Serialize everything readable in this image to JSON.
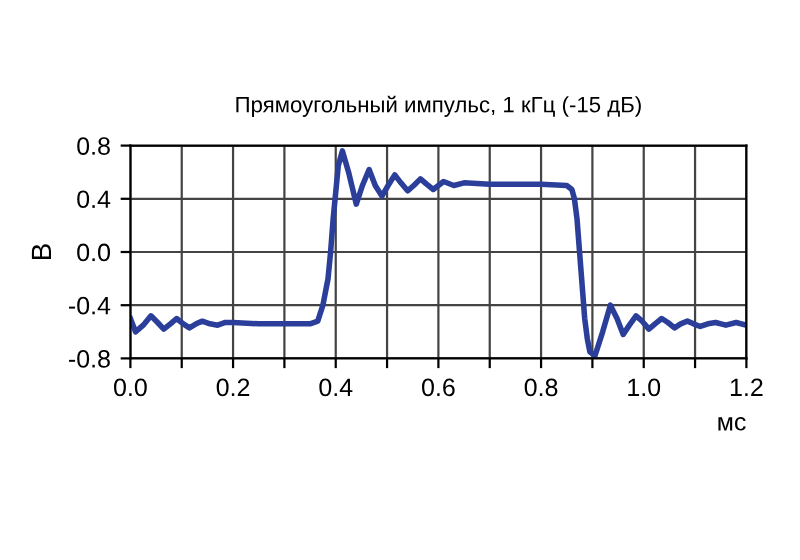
{
  "chart_data": {
    "type": "line",
    "title": "Прямоугольный импульс, 1 кГц (-15 дБ)",
    "xlabel": "мс",
    "ylabel": "В",
    "x": [
      0,
      0.01,
      0.025,
      0.04,
      0.053,
      0.065,
      0.078,
      0.09,
      0.103,
      0.115,
      0.128,
      0.14,
      0.155,
      0.17,
      0.185,
      0.2,
      0.25,
      0.3,
      0.35,
      0.365,
      0.375,
      0.385,
      0.39,
      0.395,
      0.4,
      0.405,
      0.413,
      0.425,
      0.44,
      0.452,
      0.465,
      0.477,
      0.49,
      0.502,
      0.515,
      0.527,
      0.54,
      0.552,
      0.565,
      0.577,
      0.59,
      0.6,
      0.61,
      0.63,
      0.65,
      0.7,
      0.75,
      0.8,
      0.85,
      0.86,
      0.865,
      0.87,
      0.875,
      0.88,
      0.885,
      0.89,
      0.895,
      0.905,
      0.92,
      0.935,
      0.948,
      0.96,
      0.972,
      0.985,
      0.997,
      1.01,
      1.022,
      1.035,
      1.047,
      1.06,
      1.072,
      1.085,
      1.097,
      1.11,
      1.125,
      1.14,
      1.16,
      1.18,
      1.2
    ],
    "series": [
      {
        "color": "#2b3f9a",
        "values": [
          -0.5,
          -0.6,
          -0.55,
          -0.48,
          -0.53,
          -0.58,
          -0.54,
          -0.5,
          -0.54,
          -0.57,
          -0.54,
          -0.52,
          -0.54,
          -0.55,
          -0.53,
          -0.53,
          -0.54,
          -0.54,
          -0.54,
          -0.52,
          -0.4,
          -0.2,
          0.0,
          0.25,
          0.45,
          0.65,
          0.76,
          0.6,
          0.36,
          0.5,
          0.62,
          0.5,
          0.42,
          0.5,
          0.58,
          0.52,
          0.46,
          0.5,
          0.55,
          0.51,
          0.47,
          0.5,
          0.53,
          0.5,
          0.52,
          0.51,
          0.51,
          0.51,
          0.5,
          0.47,
          0.4,
          0.25,
          0.0,
          -0.25,
          -0.5,
          -0.65,
          -0.75,
          -0.78,
          -0.6,
          -0.4,
          -0.5,
          -0.62,
          -0.55,
          -0.48,
          -0.52,
          -0.58,
          -0.54,
          -0.5,
          -0.53,
          -0.57,
          -0.54,
          -0.52,
          -0.54,
          -0.56,
          -0.54,
          -0.53,
          -0.55,
          -0.53,
          -0.55
        ]
      }
    ],
    "xlim": [
      0,
      1.2
    ],
    "ylim": [
      -0.8,
      0.8
    ],
    "xticks": [
      {
        "value": 0,
        "label": "0.0"
      },
      {
        "value": 0.1,
        "label": null
      },
      {
        "value": 0.2,
        "label": "0.2"
      },
      {
        "value": 0.3,
        "label": null
      },
      {
        "value": 0.4,
        "label": "0.4"
      },
      {
        "value": 0.5,
        "label": null
      },
      {
        "value": 0.6,
        "label": "0.6"
      },
      {
        "value": 0.7,
        "label": null
      },
      {
        "value": 0.8,
        "label": "0.8"
      },
      {
        "value": 0.9,
        "label": null
      },
      {
        "value": 1.0,
        "label": "1.0"
      },
      {
        "value": 1.1,
        "label": null
      },
      {
        "value": 1.2,
        "label": "1.2"
      }
    ],
    "yticks": [
      {
        "value": -0.8,
        "label": "-0.8"
      },
      {
        "value": -0.4,
        "label": "-0.4"
      },
      {
        "value": 0,
        "label": "0.0"
      },
      0.4,
      0.8
    ],
    "grid": true,
    "line_style": "solid",
    "marker": "none",
    "legend": false
  }
}
